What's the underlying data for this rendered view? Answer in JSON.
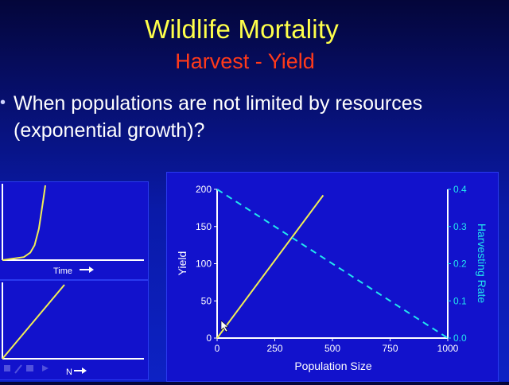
{
  "slide": {
    "title": "Wildlife Mortality",
    "subtitle": "Harvest - Yield",
    "bullet": "When populations are not limited by resources (exponential growth)?"
  },
  "colors": {
    "title": "#ffff4a",
    "subtitle": "#ff3a1a",
    "panel": "#1212cc",
    "yield_line": "#f2ef55",
    "harvest_line": "#22e6ee",
    "axis": "#ffffff"
  },
  "chart_data": [
    {
      "type": "line",
      "title": "",
      "xlabel": "Time",
      "ylabel": "",
      "series": [
        {
          "x": [
            0,
            0.5,
            0.65,
            0.75,
            0.85,
            0.95,
            1.0
          ],
          "y": [
            0,
            0.04,
            0.1,
            0.2,
            0.42,
            0.8,
            1.0
          ]
        }
      ]
    },
    {
      "type": "line",
      "title": "",
      "xlabel": "N",
      "ylabel": "",
      "series": [
        {
          "x": [
            0,
            1
          ],
          "y": [
            0,
            1
          ]
        }
      ]
    },
    {
      "type": "line",
      "title": "",
      "xlabel": "Population Size",
      "ylabel": "Yield",
      "y2label": "Harvesting Rate",
      "xlim": [
        0,
        1000
      ],
      "ylim": [
        0,
        200
      ],
      "y2lim": [
        0.0,
        0.4
      ],
      "xticks": [
        "0",
        "250",
        "500",
        "750",
        "1000"
      ],
      "yticks": [
        "0",
        "50",
        "100",
        "150",
        "200"
      ],
      "y2ticks": [
        "0.0",
        "0.1",
        "0.2",
        "0.3",
        "0.4"
      ],
      "series": [
        {
          "axis": "y",
          "style": "solid",
          "x": [
            0,
            460
          ],
          "y": [
            0,
            192
          ]
        },
        {
          "axis": "y2",
          "style": "dashed",
          "x": [
            0,
            1000
          ],
          "y": [
            0.4,
            0.0
          ]
        }
      ]
    }
  ]
}
